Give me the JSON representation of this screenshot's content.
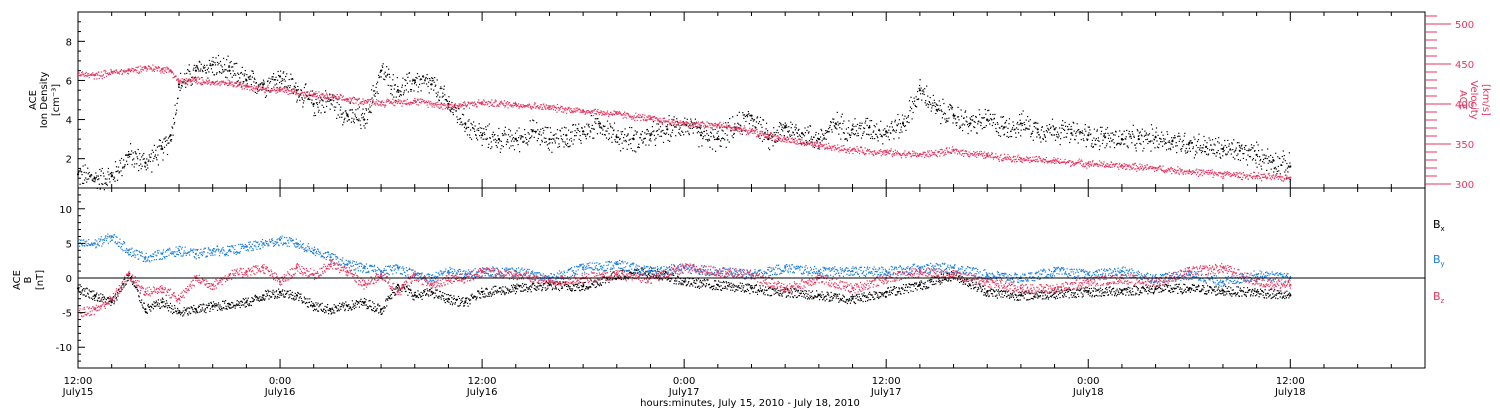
{
  "chart_data": [
    {
      "type": "scatter",
      "xlabel": "hours:minutes, July 15, 2010 - July 18, 2010",
      "x_range_hours": [
        0,
        80
      ],
      "x_ticks": [
        {
          "hour": 0,
          "label": "12:00",
          "sublabel": "July15"
        },
        {
          "hour": 12,
          "label": "0:00",
          "sublabel": "July16"
        },
        {
          "hour": 24,
          "label": "12:00",
          "sublabel": "July16"
        },
        {
          "hour": 36,
          "label": "0:00",
          "sublabel": "July17"
        },
        {
          "hour": 48,
          "label": "12:00",
          "sublabel": "July17"
        },
        {
          "hour": 60,
          "label": "0:00",
          "sublabel": "July18"
        },
        {
          "hour": 72,
          "label": "12:00",
          "sublabel": "July18"
        }
      ],
      "left_axis": {
        "label_lines": [
          "ACE",
          "Ion Density"
        ],
        "unit": "[cm⁻³]",
        "ylim": [
          0.5,
          9.5
        ],
        "ticks": [
          "2",
          "4",
          "6",
          "8"
        ]
      },
      "right_axis": {
        "label_lines": [
          "ACE",
          "Velocity"
        ],
        "unit": "[km/s]",
        "ylim": [
          295,
          515
        ],
        "ticks": [
          "300",
          "350",
          "400",
          "450",
          "500"
        ],
        "color": "#e8355f"
      },
      "series": [
        {
          "color": "#000000",
          "axis": "left",
          "x": [
            0,
            1,
            2,
            3,
            4,
            5,
            5.5,
            6,
            7,
            8,
            9,
            10,
            11,
            12,
            13,
            14,
            15,
            16,
            17,
            18,
            19,
            20,
            21,
            22,
            23,
            24,
            25,
            26,
            27,
            28,
            29,
            30,
            31,
            32,
            33,
            34,
            35,
            36,
            37,
            38,
            39,
            40,
            41,
            42,
            43,
            44,
            45,
            46,
            47,
            48,
            49,
            50,
            51,
            52,
            53,
            54,
            55,
            56,
            57,
            58,
            59,
            60,
            61,
            62,
            63,
            64,
            65,
            66,
            67,
            68,
            69,
            70,
            71,
            72
          ],
          "y": [
            1.2,
            1.0,
            1.1,
            2.2,
            1.8,
            2.5,
            3.2,
            5.8,
            6.5,
            6.8,
            6.5,
            6.0,
            5.8,
            6.2,
            5.5,
            4.8,
            5.0,
            4.2,
            4.0,
            6.5,
            5.5,
            6.0,
            5.8,
            4.8,
            3.8,
            3.2,
            3.0,
            3.0,
            3.4,
            3.0,
            3.2,
            3.4,
            3.8,
            3.1,
            3.0,
            3.2,
            3.5,
            3.8,
            3.2,
            3.0,
            3.6,
            4.2,
            3.0,
            3.6,
            3.3,
            3.0,
            3.8,
            3.5,
            3.6,
            3.4,
            3.8,
            5.5,
            4.5,
            4.2,
            3.8,
            4.0,
            3.6,
            3.8,
            3.5,
            3.5,
            3.3,
            3.2,
            3.1,
            3.0,
            3.0,
            3.1,
            2.9,
            2.8,
            2.6,
            2.5,
            2.4,
            2.2,
            1.9,
            1.6
          ]
        },
        {
          "color": "#e8355f",
          "axis": "right",
          "x": [
            0,
            1,
            2,
            3,
            4,
            5,
            5.5,
            6,
            7,
            8,
            9,
            10,
            12,
            14,
            16,
            18,
            20,
            22,
            24,
            26,
            28,
            30,
            32,
            34,
            36,
            38,
            40,
            42,
            44,
            46,
            48,
            50,
            52,
            54,
            56,
            58,
            60,
            62,
            64,
            66,
            68,
            70,
            72
          ],
          "y": [
            438,
            436,
            440,
            442,
            446,
            444,
            442,
            428,
            430,
            427,
            426,
            423,
            418,
            412,
            406,
            402,
            404,
            398,
            402,
            400,
            396,
            392,
            388,
            382,
            376,
            374,
            366,
            356,
            348,
            343,
            340,
            337,
            342,
            336,
            332,
            329,
            326,
            323,
            320,
            316,
            313,
            310,
            308
          ]
        }
      ]
    },
    {
      "type": "scatter",
      "xlabel": "hours:minutes, July 15, 2010 - July 18, 2010",
      "x_range_hours": [
        0,
        80
      ],
      "left_axis": {
        "label_lines": [
          "ACE",
          "B"
        ],
        "unit": "[nT]",
        "ylim": [
          -13,
          13
        ],
        "ticks": [
          "-10",
          "-5",
          "0",
          "5",
          "10"
        ]
      },
      "zero_line": 0,
      "series": [
        {
          "name": "Bx",
          "color": "#000000",
          "x": [
            0,
            1,
            2,
            3,
            4,
            5,
            6,
            7,
            8,
            9,
            10,
            11,
            12,
            13,
            14,
            15,
            16,
            17,
            18,
            19,
            20,
            21,
            22,
            23,
            24,
            26,
            28,
            30,
            32,
            34,
            36,
            38,
            40,
            42,
            44,
            46,
            48,
            50,
            52,
            54,
            56,
            58,
            60,
            62,
            64,
            66,
            68,
            70,
            72
          ],
          "y": [
            -1.5,
            -2.5,
            -3.5,
            0.5,
            -4.5,
            -3.5,
            -5.0,
            -4.5,
            -4.0,
            -3.8,
            -3.5,
            -2.5,
            -2.0,
            -2.5,
            -4.0,
            -4.5,
            -4.0,
            -3.5,
            -4.5,
            -1.0,
            -2.5,
            -2.0,
            -3.0,
            -3.5,
            -2.0,
            -1.5,
            -1.0,
            -1.2,
            0.5,
            1.0,
            -0.5,
            -1.0,
            -1.5,
            -2.0,
            -2.5,
            -3.0,
            -2.0,
            -1.0,
            0.5,
            -2.0,
            -2.5,
            -2.2,
            -2.0,
            -1.8,
            -1.5,
            -1.5,
            -1.8,
            -2.0,
            -2.5
          ]
        },
        {
          "name": "By",
          "color": "#1a7fe0",
          "x": [
            0,
            1,
            2,
            3,
            4,
            5,
            6,
            7,
            8,
            9,
            10,
            11,
            12,
            13,
            14,
            15,
            16,
            17,
            18,
            19,
            20,
            21,
            22,
            23,
            24,
            26,
            28,
            30,
            32,
            34,
            36,
            38,
            40,
            42,
            44,
            46,
            48,
            50,
            52,
            54,
            56,
            58,
            60,
            62,
            64,
            66,
            68,
            70,
            72
          ],
          "y": [
            5.0,
            5.0,
            6.0,
            4.0,
            3.0,
            3.5,
            4.0,
            3.5,
            4.0,
            4.0,
            4.5,
            5.0,
            5.5,
            5.0,
            4.0,
            3.0,
            2.0,
            1.5,
            1.0,
            1.5,
            0.5,
            0.0,
            1.0,
            0.5,
            1.0,
            1.0,
            0.0,
            1.5,
            2.0,
            1.0,
            1.5,
            1.0,
            0.5,
            1.5,
            1.0,
            1.0,
            1.0,
            1.5,
            1.5,
            0.5,
            0.0,
            1.0,
            0.5,
            1.0,
            0.0,
            0.5,
            -0.5,
            0.5,
            0.0
          ]
        },
        {
          "name": "Bz",
          "color": "#e8355f",
          "x": [
            0,
            1,
            2,
            3,
            4,
            5,
            6,
            7,
            8,
            9,
            10,
            11,
            12,
            13,
            14,
            15,
            16,
            17,
            18,
            19,
            20,
            21,
            22,
            23,
            24,
            26,
            28,
            30,
            32,
            34,
            36,
            38,
            40,
            42,
            44,
            46,
            48,
            50,
            52,
            54,
            56,
            58,
            60,
            62,
            64,
            66,
            68,
            70,
            72
          ],
          "y": [
            -5.0,
            -4.5,
            -3.0,
            0.5,
            -2.0,
            -1.5,
            -3.0,
            0.0,
            -1.0,
            0.5,
            1.0,
            1.5,
            -0.5,
            1.5,
            0.5,
            2.0,
            1.0,
            -1.0,
            0.5,
            -2.0,
            0.5,
            -1.0,
            0.0,
            0.0,
            1.0,
            0.5,
            -0.5,
            0.0,
            0.5,
            0.0,
            1.5,
            1.0,
            0.5,
            -1.5,
            0.0,
            -1.5,
            0.0,
            1.0,
            0.5,
            -0.5,
            -1.5,
            -1.5,
            -0.5,
            0.0,
            -0.5,
            1.0,
            1.5,
            -0.5,
            -1.0
          ]
        }
      ]
    }
  ]
}
